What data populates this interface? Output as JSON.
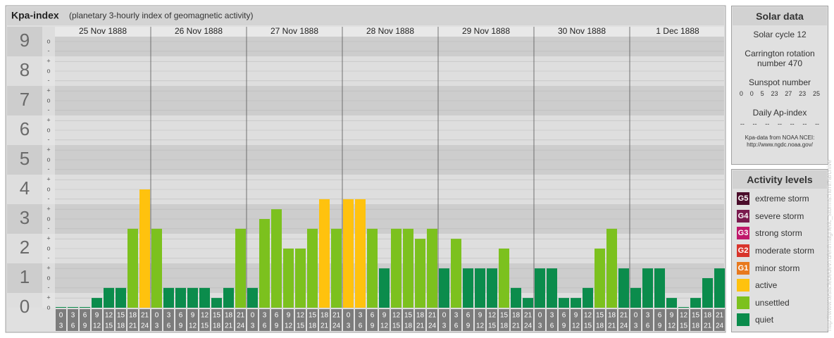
{
  "chart_data": {
    "type": "bar",
    "title": "Kpa-index",
    "subtitle": "(planetary 3-hourly index of geomagnetic activity)",
    "days": [
      "25 Nov 1888",
      "26 Nov 1888",
      "27 Nov 1888",
      "28 Nov 1888",
      "29 Nov 1888",
      "30 Nov 1888",
      "1 Dec 1888"
    ],
    "hours": [
      0,
      3,
      6,
      9,
      12,
      15,
      18,
      21,
      24
    ],
    "values": [
      0,
      0,
      0,
      0.33,
      0.67,
      0.67,
      2.67,
      4,
      2.67,
      0.67,
      0.67,
      0.67,
      0.67,
      0.33,
      0.67,
      2.67,
      0.67,
      3,
      3.33,
      2,
      2,
      2.67,
      3.67,
      2.67,
      3.67,
      3.67,
      2.67,
      1.33,
      2.67,
      2.67,
      2.33,
      2.67,
      1.33,
      2.33,
      1.33,
      1.33,
      1.33,
      2,
      0.67,
      0.33,
      1.33,
      1.33,
      0.33,
      0.33,
      0.67,
      2,
      2.67,
      1.33,
      0.67,
      1.33,
      1.33,
      0.33,
      0,
      0.33,
      1,
      1.33
    ],
    "colors": [
      "#0b8c4c",
      "#0b8c4c",
      "#0b8c4c",
      "#0b8c4c",
      "#0b8c4c",
      "#0b8c4c",
      "#7cc11e",
      "#ffc20e",
      "#7cc11e",
      "#0b8c4c",
      "#0b8c4c",
      "#0b8c4c",
      "#0b8c4c",
      "#0b8c4c",
      "#0b8c4c",
      "#7cc11e",
      "#0b8c4c",
      "#7cc11e",
      "#7cc11e",
      "#7cc11e",
      "#7cc11e",
      "#7cc11e",
      "#ffc20e",
      "#7cc11e",
      "#ffc20e",
      "#ffc20e",
      "#7cc11e",
      "#0b8c4c",
      "#7cc11e",
      "#7cc11e",
      "#7cc11e",
      "#7cc11e",
      "#0b8c4c",
      "#7cc11e",
      "#0b8c4c",
      "#0b8c4c",
      "#0b8c4c",
      "#7cc11e",
      "#0b8c4c",
      "#0b8c4c",
      "#0b8c4c",
      "#0b8c4c",
      "#0b8c4c",
      "#0b8c4c",
      "#0b8c4c",
      "#7cc11e",
      "#7cc11e",
      "#0b8c4c",
      "#0b8c4c",
      "#0b8c4c",
      "#0b8c4c",
      "#0b8c4c",
      "#0b8c4c",
      "#0b8c4c",
      "#0b8c4c",
      "#0b8c4c"
    ],
    "ylim": [
      0,
      9.5
    ],
    "yticks": [
      0,
      1,
      2,
      3,
      4,
      5,
      6,
      7,
      8,
      9
    ],
    "minor_yticks": [
      {
        "value": 0,
        "label": "o"
      },
      {
        "value": 0.33,
        "label": "+"
      },
      {
        "value": 0.67,
        "label": "-"
      },
      {
        "value": 1,
        "label": "o"
      },
      {
        "value": 1.33,
        "label": "+"
      },
      {
        "value": 1.67,
        "label": "-"
      },
      {
        "value": 2,
        "label": "o"
      },
      {
        "value": 2.33,
        "label": "+"
      },
      {
        "value": 2.67,
        "label": "-"
      },
      {
        "value": 3,
        "label": "o"
      },
      {
        "value": 3.33,
        "label": "+"
      },
      {
        "value": 3.67,
        "label": "-"
      },
      {
        "value": 4,
        "label": "o"
      },
      {
        "value": 4.33,
        "label": "+"
      },
      {
        "value": 4.67,
        "label": "-"
      },
      {
        "value": 5,
        "label": "o"
      },
      {
        "value": 5.33,
        "label": "+"
      },
      {
        "value": 5.67,
        "label": "-"
      },
      {
        "value": 6,
        "label": "o"
      },
      {
        "value": 6.33,
        "label": "+"
      },
      {
        "value": 6.67,
        "label": "-"
      },
      {
        "value": 7,
        "label": "o"
      },
      {
        "value": 7.33,
        "label": "+"
      },
      {
        "value": 7.67,
        "label": "-"
      },
      {
        "value": 8,
        "label": "o"
      },
      {
        "value": 8.33,
        "label": "+"
      },
      {
        "value": 8.67,
        "label": "-"
      },
      {
        "value": 9,
        "label": "o"
      }
    ],
    "grid": true
  },
  "solar_data": {
    "title": "Solar data",
    "cycle": "Solar cycle 12",
    "carrington": "Carrington rotation number 470",
    "sunspot_title": "Sunspot number",
    "sunspots": [
      0,
      0,
      5,
      23,
      27,
      23,
      25
    ],
    "ap_title": "Daily Ap-index",
    "ap": [
      "--",
      "--",
      "--",
      "--",
      "--",
      "--",
      "--"
    ],
    "source": "Kpa-data from NOAA NCEI: http://www.ngdc.noaa.gov/"
  },
  "activity_levels": {
    "title": "Activity levels",
    "items": [
      {
        "code": "G5",
        "label": "extreme storm",
        "color": "#4a0c2a"
      },
      {
        "code": "G4",
        "label": "severe storm",
        "color": "#7a1a4e"
      },
      {
        "code": "G3",
        "label": "strong storm",
        "color": "#c0186b"
      },
      {
        "code": "G2",
        "label": "moderate storm",
        "color": "#d8342b"
      },
      {
        "code": "G1",
        "label": "minor storm",
        "color": "#e8791e"
      },
      {
        "code": null,
        "label": "active",
        "color": "#ffc20e"
      },
      {
        "code": null,
        "label": "unsettled",
        "color": "#7cc11e"
      },
      {
        "code": null,
        "label": "quiet",
        "color": "#0b8c4c"
      }
    ]
  },
  "watermark": "http://www.tesis.lebedev.ru/en/magnetic_storms.html?archive"
}
